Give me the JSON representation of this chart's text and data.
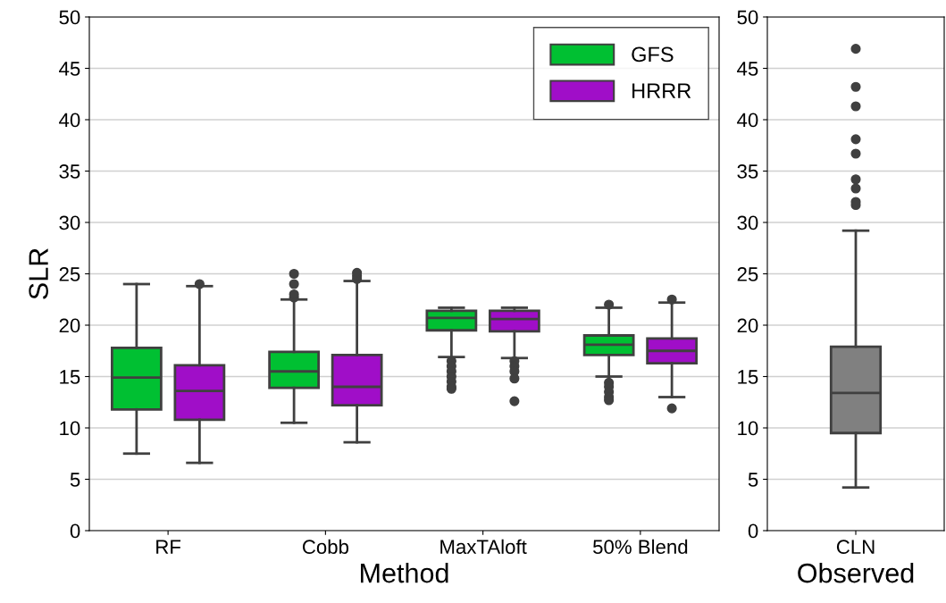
{
  "chart_data": [
    {
      "type": "box",
      "xlabel": "Method",
      "ylabel": "SLR",
      "categories": [
        "RF",
        "Cobb",
        "MaxTAloft",
        "50% Blend"
      ],
      "ylim": [
        0,
        50
      ],
      "yticks": [
        0,
        5,
        10,
        15,
        20,
        25,
        30,
        35,
        40,
        45,
        50
      ],
      "grid": "y",
      "legend": "top right",
      "series": [
        {
          "name": "GFS",
          "color": "#00c032",
          "boxes": [
            {
              "low": 7.5,
              "q1": 11.8,
              "median": 14.9,
              "q3": 17.8,
              "high": 24.0
            },
            {
              "low": 10.5,
              "q1": 13.9,
              "median": 15.5,
              "q3": 17.4,
              "high": 22.5,
              "outliers": [
                22.7,
                23.0,
                24.0,
                25.0
              ]
            },
            {
              "low": 16.9,
              "q1": 19.5,
              "median": 20.7,
              "q3": 21.4,
              "high": 21.7,
              "outliers": [
                16.5,
                16.0,
                15.5,
                15.0,
                14.5,
                14.0,
                13.8
              ]
            },
            {
              "low": 15.0,
              "q1": 17.1,
              "median": 18.1,
              "q3": 19.0,
              "high": 21.7,
              "outliers": [
                22.0,
                14.4,
                14.0,
                13.5,
                13.0,
                12.7
              ]
            }
          ]
        },
        {
          "name": "HRRR",
          "color": "#a00ec8",
          "boxes": [
            {
              "low": 6.6,
              "q1": 10.8,
              "median": 13.6,
              "q3": 16.1,
              "high": 23.8,
              "outliers": [
                24.0
              ]
            },
            {
              "low": 8.6,
              "q1": 12.2,
              "median": 14.0,
              "q3": 17.1,
              "high": 24.3,
              "outliers": [
                24.5,
                24.8,
                25.1
              ]
            },
            {
              "low": 16.8,
              "q1": 19.4,
              "median": 20.6,
              "q3": 21.4,
              "high": 21.7,
              "outliers": [
                16.5,
                16.0,
                15.5,
                14.8,
                12.6
              ]
            },
            {
              "low": 13.0,
              "q1": 16.3,
              "median": 17.5,
              "q3": 18.7,
              "high": 22.2,
              "outliers": [
                22.5,
                11.9
              ]
            }
          ]
        }
      ]
    },
    {
      "type": "box",
      "xlabel": "Observed",
      "categories": [
        "CLN"
      ],
      "ylim": [
        0,
        50
      ],
      "yticks": [
        0,
        5,
        10,
        15,
        20,
        25,
        30,
        35,
        40,
        45,
        50
      ],
      "grid": "y",
      "colors": [
        "#808080"
      ],
      "boxes": [
        {
          "low": 4.2,
          "q1": 9.5,
          "median": 13.4,
          "q3": 17.9,
          "high": 29.2,
          "outliers": [
            46.9,
            43.2,
            41.3,
            38.1,
            36.7,
            34.2,
            33.3,
            32.0,
            31.7
          ]
        }
      ]
    }
  ]
}
